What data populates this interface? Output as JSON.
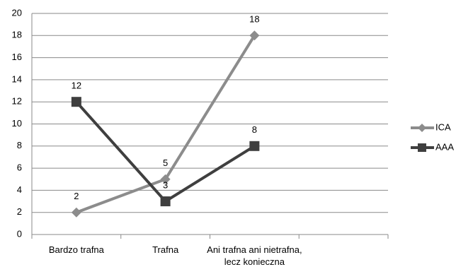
{
  "chart_data": {
    "type": "line",
    "categories": [
      "Bardzo trafna",
      "Trafna",
      "Ani trafna ani nietrafna, lecz konieczna",
      null
    ],
    "series": [
      {
        "name": "ICA",
        "color": "#8c8c8c",
        "marker": "diamond",
        "values": [
          2,
          5,
          18,
          null
        ]
      },
      {
        "name": "AAA",
        "color": "#3f3f3f",
        "marker": "square",
        "values": [
          12,
          3,
          8,
          null
        ]
      }
    ],
    "ylim": [
      0,
      20
    ],
    "yticks": [
      0,
      2,
      4,
      6,
      8,
      10,
      12,
      14,
      16,
      18,
      20
    ],
    "grid": true,
    "legend": "right"
  }
}
